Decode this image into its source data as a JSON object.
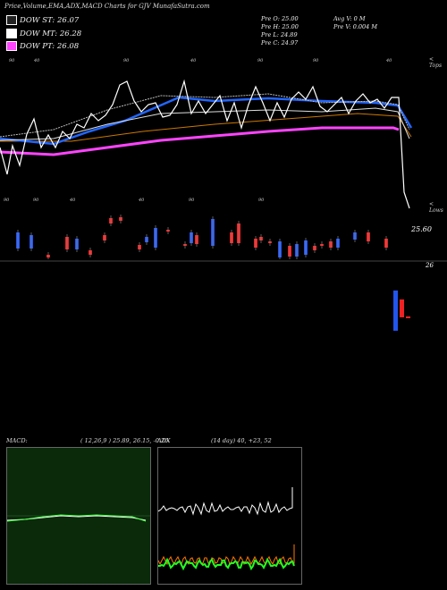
{
  "header": {
    "title": "Price,Volume,EMA,ADX,MACD Charts for GJV MunafaSutra.com"
  },
  "legend": [
    {
      "label": "DOW ST: 26.07",
      "color": "#222222"
    },
    {
      "label": "DOW MT: 26.28",
      "color": "#ffffff"
    },
    {
      "label": "DOW PT: 26.08",
      "color": "#ff44ff"
    }
  ],
  "stats": {
    "prev_open": "Pre   O: 25.00",
    "prev_high": "Pre   H: 25.00",
    "prev_low": "Pre   L: 24.89",
    "prev_close": "Pre   C: 24.97",
    "avg_volume": "Avg V: 0  M",
    "prev_volume": "Pre   V: 0.004  M"
  },
  "price_axis": {
    "label_upper": "25.60",
    "label_lower": "26",
    "top_label": "< Tops",
    "bottom_label": "< Lows"
  },
  "macd_panel": {
    "label": "MACD:",
    "values": "( 12,26,9 ) 25.89, 26.15, -0.26"
  },
  "adx_panel": {
    "label": "ADX",
    "values": "(14  day) 40, +23, 52"
  },
  "markers": {
    "top": [
      "90",
      "40",
      "90",
      "40",
      "90",
      "90",
      "40"
    ],
    "bottom": [
      "90",
      "90",
      "40",
      "40",
      "90",
      "90"
    ]
  },
  "colors": {
    "ema_short": "#222222",
    "ema_mid": "#ffffff",
    "ema_long": "#ff44ff",
    "ema_orange": "#cc7700",
    "ema_blue": "#2266ff",
    "candle_up": "#2255ee",
    "candle_down": "#ee2222",
    "macd_bg": "#0a2a0a",
    "adx_line": "#ffffff",
    "di_plus": "#22ff22",
    "di_minus": "#ff7700"
  },
  "chart_data": {
    "type": "line",
    "series": [
      {
        "name": "DOW ST",
        "values": [
          26.07
        ]
      },
      {
        "name": "DOW MT",
        "values": [
          26.28
        ]
      },
      {
        "name": "DOW PT",
        "values": [
          26.08
        ]
      }
    ]
  }
}
